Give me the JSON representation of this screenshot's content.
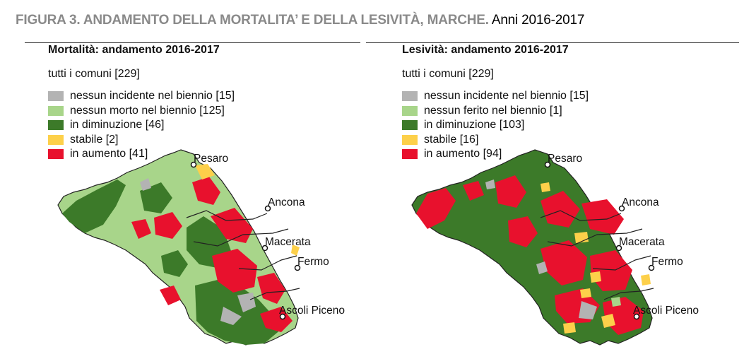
{
  "figure": {
    "label": "FIGURA 3. ANDAMENTO DELLA MORTALITA’ E DELLA LESIVITÀ, MARCHE.",
    "years": "Anni 2016-2017"
  },
  "colors": {
    "gray": "#b3b3b3",
    "light_green": "#a8d58a",
    "dark_green": "#3c7a29",
    "yellow": "#fdd04a",
    "red": "#e8112d"
  },
  "panels": [
    {
      "title": "Mortalità: andamento 2016-2017",
      "subtitle": "tutti i comuni [229]",
      "legend": [
        {
          "label": "nessun incidente nel biennio [15]",
          "color": "#b3b3b3"
        },
        {
          "label": "nessun morto nel biennio [125]",
          "color": "#a8d58a"
        },
        {
          "label": "in diminuzione [46]",
          "color": "#3c7a29"
        },
        {
          "label": "stabile [2]",
          "color": "#fdd04a"
        },
        {
          "label": "in aumento [41]",
          "color": "#e8112d"
        }
      ],
      "cities": [
        "Pesaro",
        "Ancona",
        "Macerata",
        "Fermo",
        "Ascoli Piceno"
      ]
    },
    {
      "title": "Lesività: andamento 2016-2017",
      "subtitle": "tutti i comuni [229]",
      "legend": [
        {
          "label": "nessun incidente nel biennio [15]",
          "color": "#b3b3b3"
        },
        {
          "label": "nessun ferito nel biennio [1]",
          "color": "#a8d58a"
        },
        {
          "label": "in diminuzione [103]",
          "color": "#3c7a29"
        },
        {
          "label": "stabile [16]",
          "color": "#fdd04a"
        },
        {
          "label": "in aumento [94]",
          "color": "#e8112d"
        }
      ],
      "cities": [
        "Pesaro",
        "Ancona",
        "Macerata",
        "Fermo",
        "Ascoli Piceno"
      ]
    }
  ]
}
